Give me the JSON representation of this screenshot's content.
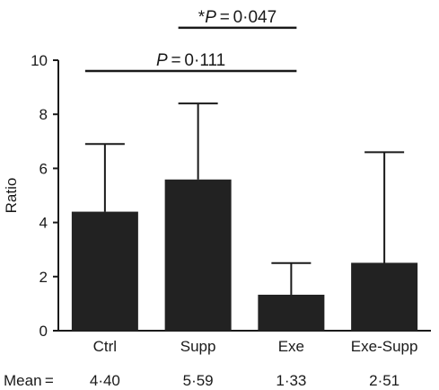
{
  "chart_data": {
    "type": "bar",
    "ylabel": "Ratio",
    "ylim": [
      0,
      10
    ],
    "yticks": [
      "0",
      "2",
      "4",
      "6",
      "8",
      "10"
    ],
    "categories": [
      "Ctrl",
      "Supp",
      "Exe",
      "Exe-Supp"
    ],
    "values": [
      4.4,
      5.59,
      1.33,
      2.51
    ],
    "error_upper": [
      6.9,
      8.4,
      2.5,
      6.6
    ],
    "bar_color": "#222222",
    "mean_label": "Mean =",
    "mean_texts": [
      "4·40",
      "5·59",
      "1·33",
      "2·51"
    ],
    "annotations": [
      {
        "prefix": "",
        "italic": "P",
        "rest": " = 0·111",
        "from": 0,
        "to": 2,
        "y": 9.6
      },
      {
        "prefix": "*",
        "italic": "P",
        "rest": " = 0·047",
        "from": 1,
        "to": 2,
        "y": 11.2
      }
    ]
  }
}
